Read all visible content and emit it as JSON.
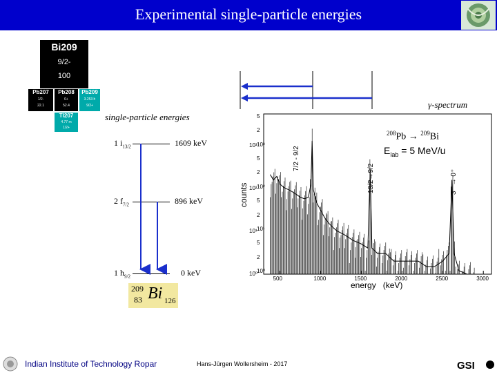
{
  "slide": {
    "title": "Experimental single-particle energies"
  },
  "chart_nucleus": {
    "center": {
      "name": "Bi209",
      "spin": "9/2-",
      "abundance": "100",
      "color": "#000000"
    },
    "left": {
      "name": "Pb207",
      "row1": "1/2-",
      "row2": "22.1",
      "color": "#000000"
    },
    "middle": {
      "name": "Pb208",
      "row1": "0+",
      "row2": "52.4",
      "color": "#000000"
    },
    "right": {
      "name": "Pb209",
      "row1": "3.253 h",
      "row2": "9/2+",
      "color": "#00aaaa"
    },
    "bottom": {
      "name": "Tl207",
      "row1": "4.77 m",
      "row2": "1/2+",
      "color": "#00aaaa"
    }
  },
  "level_scheme": {
    "heading": "single-particle energies",
    "levels": [
      {
        "n": "1 i",
        "sub": "13/2",
        "energy": "1609 keV"
      },
      {
        "n": "2 f",
        "sub": "7/2",
        "energy": "896 keV"
      },
      {
        "n": "1 h",
        "sub": "9/2",
        "energy": "0 keV"
      }
    ],
    "nucleus_label": {
      "mass": "209",
      "z": "83",
      "symbol": "Bi",
      "n": "126"
    }
  },
  "spectrum": {
    "heading": "γ-spectrum",
    "reaction": {
      "projectile_mass": "208",
      "projectile": "Pb",
      "arrow": "→",
      "product_mass": "209",
      "product": "Bi"
    },
    "beam": {
      "label": "E",
      "sub": "lab",
      "value": " = 5 MeV/u"
    },
    "y_axis_label": "counts",
    "x_axis_label": "energy   (keV)",
    "y_ticks_main": [
      "5",
      "2",
      "10³",
      "5",
      "2",
      "10²",
      "5",
      "2",
      "10¹",
      "5",
      "2",
      "10⁰"
    ],
    "y_ticks_left": [
      "10³",
      "10²",
      "10¹",
      "10⁰"
    ],
    "x_ticks": [
      "500",
      "1000",
      "1500",
      "2000",
      "2500",
      "3000"
    ],
    "peaks": [
      {
        "label": "7/2 - 9/2",
        "energy_kev": 896
      },
      {
        "label": "13/2→9/2",
        "energy_kev": 1609
      },
      {
        "label": "3⁻ → 0⁺",
        "energy_kev": 2614
      }
    ],
    "x_range_kev": [
      300,
      3100
    ]
  },
  "chart_data": {
    "type": "line",
    "x_name": "energy (keV)",
    "ylabel": "counts",
    "xlabel": "energy (keV)",
    "xlim": [
      300,
      3100
    ],
    "ylog": true,
    "ylim": [
      1,
      5000
    ],
    "points": [
      [
        380,
        200
      ],
      [
        420,
        150
      ],
      [
        460,
        180
      ],
      [
        500,
        120
      ],
      [
        550,
        100
      ],
      [
        600,
        90
      ],
      [
        650,
        80
      ],
      [
        700,
        70
      ],
      [
        750,
        60
      ],
      [
        800,
        55
      ],
      [
        850,
        60
      ],
      [
        880,
        120
      ],
      [
        896,
        1200
      ],
      [
        910,
        90
      ],
      [
        950,
        45
      ],
      [
        1000,
        30
      ],
      [
        1050,
        20
      ],
      [
        1100,
        15
      ],
      [
        1150,
        12
      ],
      [
        1200,
        10
      ],
      [
        1300,
        8
      ],
      [
        1400,
        6
      ],
      [
        1500,
        5
      ],
      [
        1580,
        4
      ],
      [
        1609,
        250
      ],
      [
        1630,
        4
      ],
      [
        1700,
        3
      ],
      [
        1800,
        3
      ],
      [
        1900,
        2
      ],
      [
        2000,
        2
      ],
      [
        2100,
        2
      ],
      [
        2200,
        2
      ],
      [
        2300,
        1.5
      ],
      [
        2400,
        1.5
      ],
      [
        2500,
        2
      ],
      [
        2580,
        3
      ],
      [
        2614,
        150
      ],
      [
        2640,
        3
      ],
      [
        2700,
        1.2
      ],
      [
        2800,
        1
      ]
    ]
  },
  "footer": {
    "institute": "Indian Institute of Technology Ropar",
    "author": "Hans-Jürgen Wollersheim - 2017",
    "logo_text": "GSI"
  },
  "colors": {
    "title_bar": "#0000cc",
    "arrow_blue": "#1a2fcc",
    "footer_text": "#000082"
  }
}
